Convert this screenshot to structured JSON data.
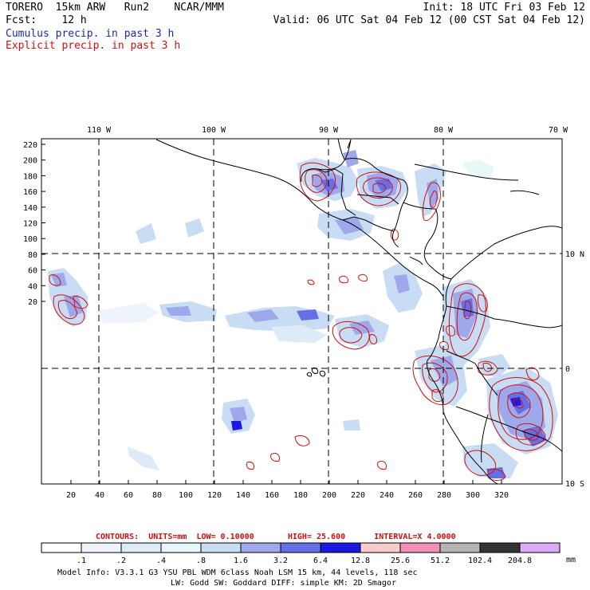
{
  "header": {
    "model": "TORERO",
    "resolution": "15km ARW",
    "run": "Run2",
    "org": "NCAR/MMM",
    "init": "Init: 18 UTC Fri 03 Feb 12",
    "fcst_label": "Fcst:",
    "fcst_value": "12 h",
    "valid": "Valid: 06 UTC Sat 04 Feb 12 (00 CST Sat 04 Feb 12)"
  },
  "legend": {
    "cumulus": "Cumulus precip. in past 3 h",
    "explicit": "Explicit precip. in past 3 h",
    "cumulus_color": "#1c2c9e",
    "explicit_color": "#d01010"
  },
  "map": {
    "top_lon_labels": [
      "110 W",
      "100 W",
      "90 W",
      "80 W",
      "70 W"
    ],
    "right_lat_labels": [
      "10 N",
      "0",
      "10 S"
    ],
    "y_ticks": [
      "220",
      "200",
      "180",
      "160",
      "140",
      "120",
      "100",
      "80",
      "60",
      "40",
      "20"
    ],
    "x_ticks": [
      "20",
      "40",
      "60",
      "80",
      "100",
      "120",
      "140",
      "160",
      "180",
      "200",
      "220",
      "240",
      "260",
      "280",
      "300",
      "320"
    ]
  },
  "contours": {
    "label": "CONTOURS:",
    "units": "UNITS=mm",
    "low": "LOW= 0.10000",
    "high": "HIGH= 25.600",
    "interval": "INTERVAL=X 4.0000"
  },
  "colorbar": {
    "labels": [
      ".1",
      ".2",
      ".4",
      ".8",
      "1.6",
      "3.2",
      "6.4",
      "12.8",
      "25.6",
      "51.2",
      "102.4",
      "204.8"
    ],
    "unit": "mm",
    "colors": [
      "#ffffff",
      "#eef4fb",
      "#dcebf7",
      "#e6f8f8",
      "#c8dcf4",
      "#a0a8ec",
      "#6670e6",
      "#1a18e2",
      "#f8cccc",
      "#f490b8",
      "#b4b4b4",
      "#343434",
      "#dcaaf6"
    ]
  },
  "footer": {
    "line1": "Model Info: V3.3.1    G3      YSU PBL  WDM 6class  Noah LSM  15 km,    44 levels,  118 sec",
    "line2": "LW: Godd SW: Goddard DIFF: simple KM: 2D Smagor"
  }
}
